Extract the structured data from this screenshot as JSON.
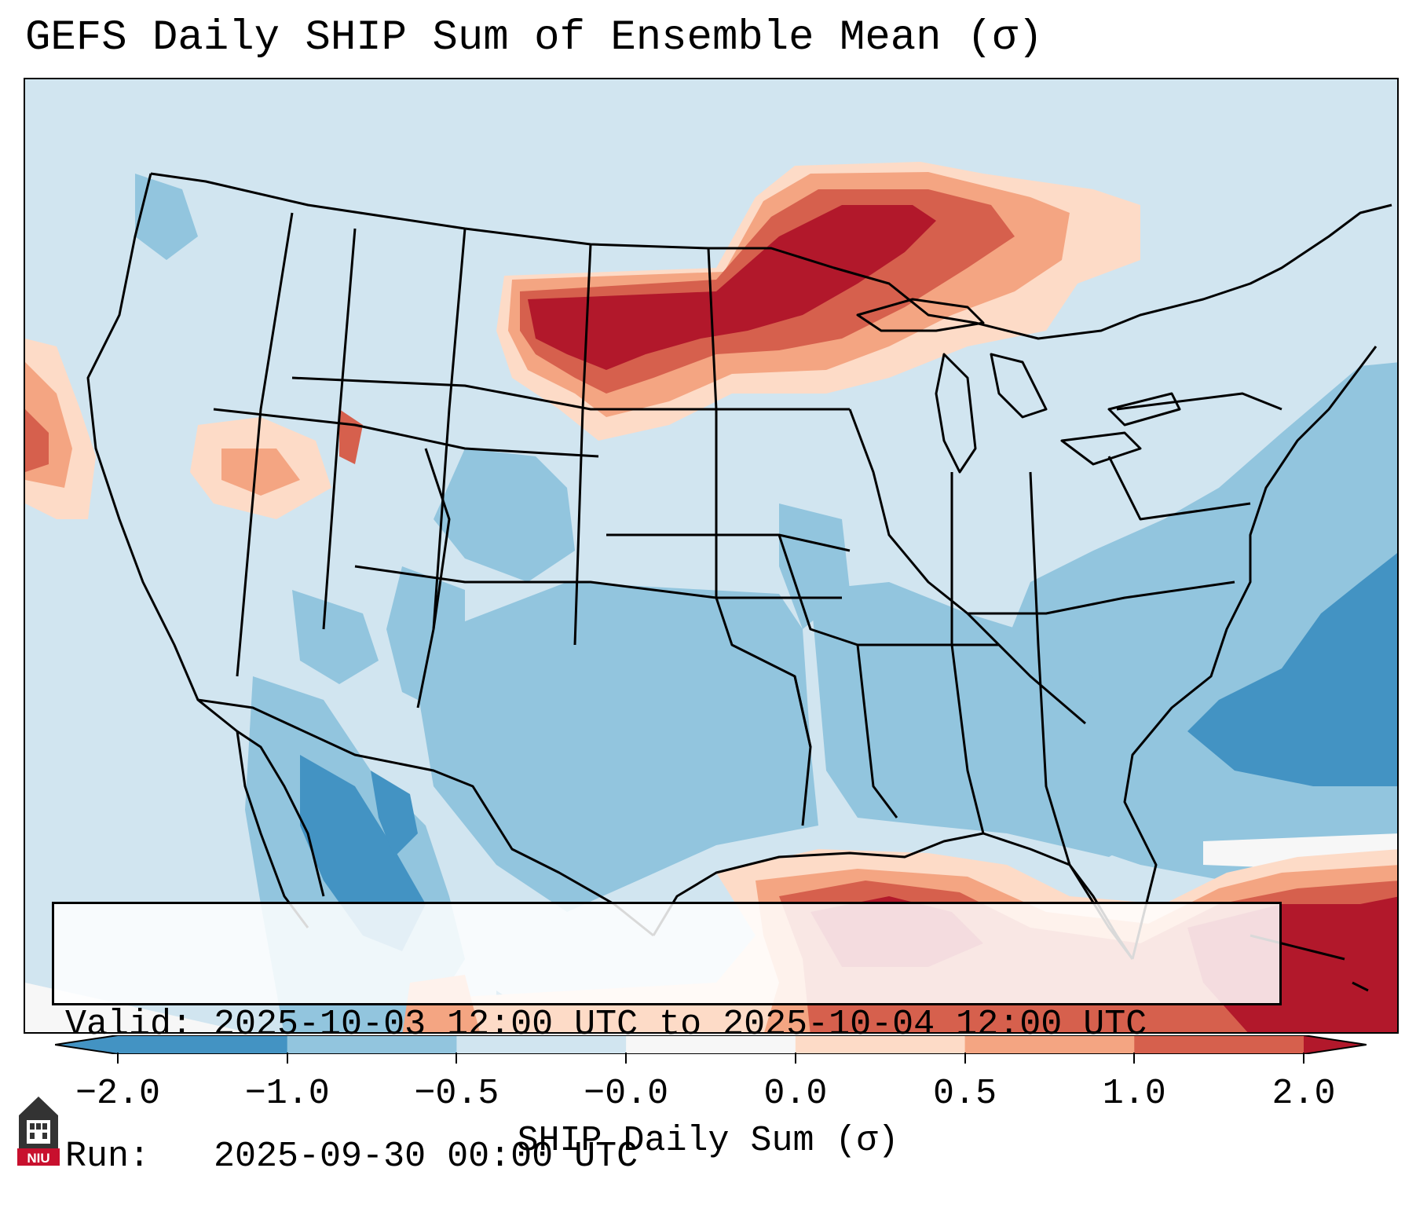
{
  "title": "GEFS Daily SHIP Sum of Ensemble Mean (σ)",
  "info": {
    "valid_line": "Valid: 2025-10-03 12:00 UTC to 2025-10-04 12:00 UTC",
    "run_line": "Run:   2025-09-30 00:00 UTC"
  },
  "colorbar": {
    "label": "SHIP Daily Sum (σ)",
    "tick_labels": [
      "−2.0",
      "−1.0",
      "−0.5",
      "−0.0",
      "0.0",
      "0.5",
      "1.0",
      "2.0"
    ],
    "bins": [
      {
        "color": "#4393c3"
      },
      {
        "color": "#92c5de"
      },
      {
        "color": "#d1e5f0"
      },
      {
        "color": "#f7f7f7"
      },
      {
        "color": "#fddbc7"
      },
      {
        "color": "#f4a582"
      },
      {
        "color": "#d6604d"
      }
    ],
    "under_color": "#4393c3",
    "over_color": "#b2182b"
  },
  "logo": {
    "text": "NIU"
  },
  "colors": {
    "ocean_default": "#d1e5f0",
    "strong_neg": "#4393c3",
    "neg": "#92c5de",
    "pos_light": "#fddbc7",
    "pos": "#f4a582",
    "pos_med": "#d6604d",
    "pos_strong": "#b2182b"
  }
}
